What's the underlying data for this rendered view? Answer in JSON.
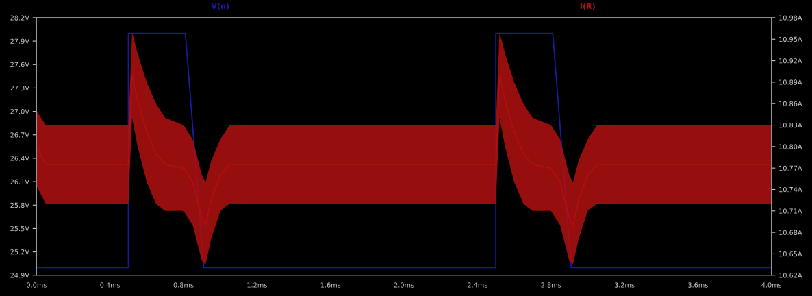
{
  "chart_data": {
    "type": "line",
    "xlim": [
      0,
      4.0
    ],
    "xticks": [
      {
        "value": 0,
        "label": "0.0ms"
      },
      {
        "value": 0.4,
        "label": "0.4ms"
      },
      {
        "value": 0.8,
        "label": "0.8ms"
      },
      {
        "value": 1.2,
        "label": "1.2ms"
      },
      {
        "value": 1.6,
        "label": "1.6ms"
      },
      {
        "value": 2.0,
        "label": "2.0ms"
      },
      {
        "value": 2.4,
        "label": "2.4ms"
      },
      {
        "value": 2.8,
        "label": "2.8ms"
      },
      {
        "value": 3.2,
        "label": "3.2ms"
      },
      {
        "value": 3.6,
        "label": "3.6ms"
      },
      {
        "value": 4.0,
        "label": "4.0ms"
      }
    ],
    "ylim": [
      24.9,
      28.2
    ],
    "yticks": [
      {
        "value": 24.9,
        "label": "24.9V"
      },
      {
        "value": 25.2,
        "label": "25.2V"
      },
      {
        "value": 25.5,
        "label": "25.5V"
      },
      {
        "value": 25.8,
        "label": "25.8V"
      },
      {
        "value": 26.1,
        "label": "26.1V"
      },
      {
        "value": 26.4,
        "label": "26.4V"
      },
      {
        "value": 26.7,
        "label": "26.7V"
      },
      {
        "value": 27.0,
        "label": "27.0V"
      },
      {
        "value": 27.3,
        "label": "27.3V"
      },
      {
        "value": 27.6,
        "label": "27.6V"
      },
      {
        "value": 27.9,
        "label": "27.9V"
      },
      {
        "value": 28.2,
        "label": "28.2V"
      }
    ],
    "y2lim": [
      10.62,
      10.98
    ],
    "y2ticks": [
      {
        "value": 10.62,
        "label": "10.62A"
      },
      {
        "value": 10.65,
        "label": "10.65A"
      },
      {
        "value": 10.68,
        "label": "10.68A"
      },
      {
        "value": 10.71,
        "label": "10.71A"
      },
      {
        "value": 10.74,
        "label": "10.74A"
      },
      {
        "value": 10.77,
        "label": "10.77A"
      },
      {
        "value": 10.8,
        "label": "10.80A"
      },
      {
        "value": 10.83,
        "label": "10.83A"
      },
      {
        "value": 10.86,
        "label": "10.86A"
      },
      {
        "value": 10.89,
        "label": "10.89A"
      },
      {
        "value": 10.92,
        "label": "10.92A"
      },
      {
        "value": 10.95,
        "label": "10.95A"
      },
      {
        "value": 10.98,
        "label": "10.98A"
      }
    ],
    "legend": "top",
    "grid": false,
    "series": [
      {
        "name": "V(n)",
        "color": "#1a1aa0",
        "x": [
          0,
          0.5,
          0.5,
          0.81,
          0.91,
          2.5,
          2.5,
          2.81,
          2.91,
          4.0
        ],
        "values": [
          25.0,
          25.0,
          28.0,
          28.0,
          25.0,
          25.0,
          28.0,
          28.0,
          25.0,
          25.0
        ]
      },
      {
        "name": "I(R)",
        "color": "#b01010",
        "axis": "y2",
        "x": [
          0,
          0.05,
          0.5,
          0.52,
          0.55,
          0.6,
          0.65,
          0.7,
          0.8,
          0.85,
          0.9,
          0.92,
          0.95,
          1.0,
          1.05,
          2.5,
          2.52,
          2.55,
          2.6,
          2.65,
          2.7,
          2.8,
          2.85,
          2.9,
          2.92,
          2.95,
          3.0,
          3.05,
          4.0
        ],
        "values": [
          10.8,
          10.775,
          10.775,
          10.9,
          10.865,
          10.82,
          10.79,
          10.775,
          10.77,
          10.75,
          10.7,
          10.69,
          10.725,
          10.76,
          10.775,
          10.775,
          10.9,
          10.865,
          10.82,
          10.79,
          10.775,
          10.77,
          10.75,
          10.7,
          10.69,
          10.725,
          10.76,
          10.775,
          10.775
        ],
        "upper": [
          10.85,
          10.83,
          10.83,
          10.96,
          10.93,
          10.89,
          10.86,
          10.84,
          10.83,
          10.81,
          10.76,
          10.75,
          10.78,
          10.81,
          10.83,
          10.83,
          10.96,
          10.93,
          10.89,
          10.86,
          10.84,
          10.83,
          10.81,
          10.76,
          10.75,
          10.78,
          10.81,
          10.83,
          10.83
        ],
        "lower": [
          10.745,
          10.72,
          10.72,
          10.84,
          10.8,
          10.75,
          10.72,
          10.71,
          10.71,
          10.69,
          10.64,
          10.635,
          10.67,
          10.71,
          10.72,
          10.72,
          10.84,
          10.8,
          10.75,
          10.72,
          10.71,
          10.71,
          10.69,
          10.64,
          10.635,
          10.67,
          10.71,
          10.72,
          10.72
        ]
      }
    ]
  }
}
